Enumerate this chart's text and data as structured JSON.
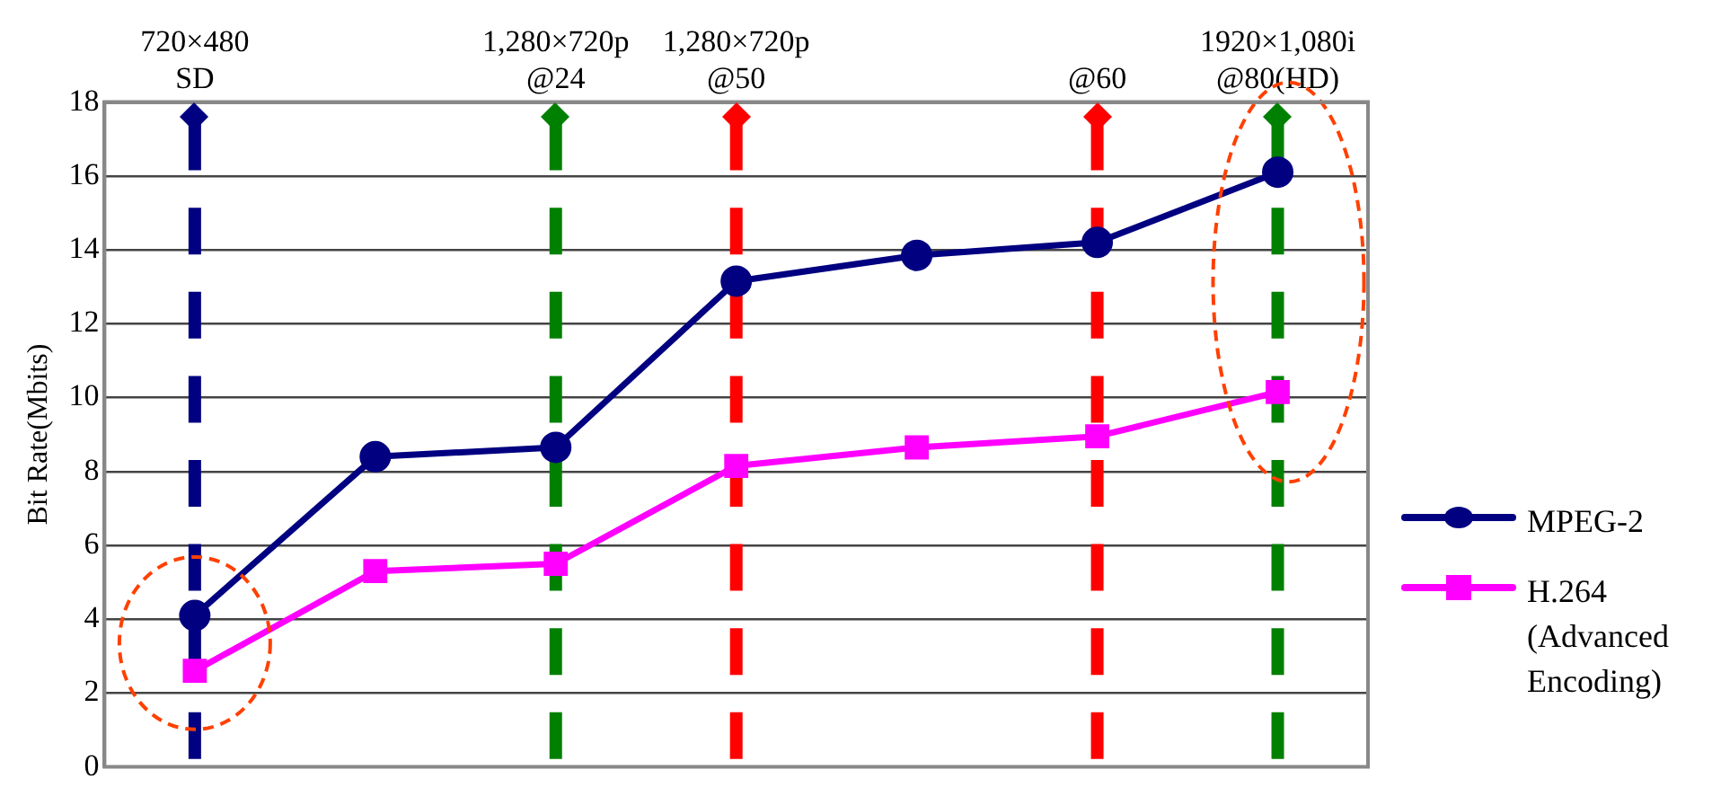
{
  "chart_data": {
    "type": "line",
    "ylabel": "Bit Rate(Mbits)",
    "categories": [
      "720×480\nSD",
      null,
      "1,280×720p\n@24",
      "1,280×720p\n@50",
      null,
      "@60",
      "1920×1,080i\n@80(HD)"
    ],
    "ylim": [
      0,
      18
    ],
    "yticks": [
      0,
      2,
      4,
      6,
      8,
      10,
      12,
      14,
      16,
      18
    ],
    "series": [
      {
        "name": "MPEG-2",
        "color": "#000080",
        "marker": "circle",
        "values": [
          4.1,
          8.4,
          8.65,
          13.15,
          13.85,
          14.2,
          16.1
        ]
      },
      {
        "name": "H.264 (Advanced Encoding)",
        "color": "#ff00ff",
        "marker": "square",
        "values": [
          2.6,
          5.3,
          5.5,
          8.15,
          8.65,
          8.95,
          10.15
        ]
      }
    ],
    "ref_lines": [
      {
        "axis": "x",
        "value": "720×480\nSD",
        "color": "#000080",
        "line_style": "dashed"
      },
      {
        "axis": "x",
        "value": "1,280×720p\n@24",
        "color": "#008000",
        "line_style": "dashed"
      },
      {
        "axis": "x",
        "value": "1,280×720p\n@50",
        "color": "#ff0000",
        "line_style": "dashed"
      },
      {
        "axis": "x",
        "value": "@60",
        "color": "#ff0000",
        "line_style": "dashed"
      },
      {
        "axis": "x",
        "value": "1920×1,080i\n@80(HD)",
        "color": "#008000",
        "line_style": "dashed"
      }
    ],
    "grid": "y",
    "legend": "right",
    "line_style": "solid"
  }
}
